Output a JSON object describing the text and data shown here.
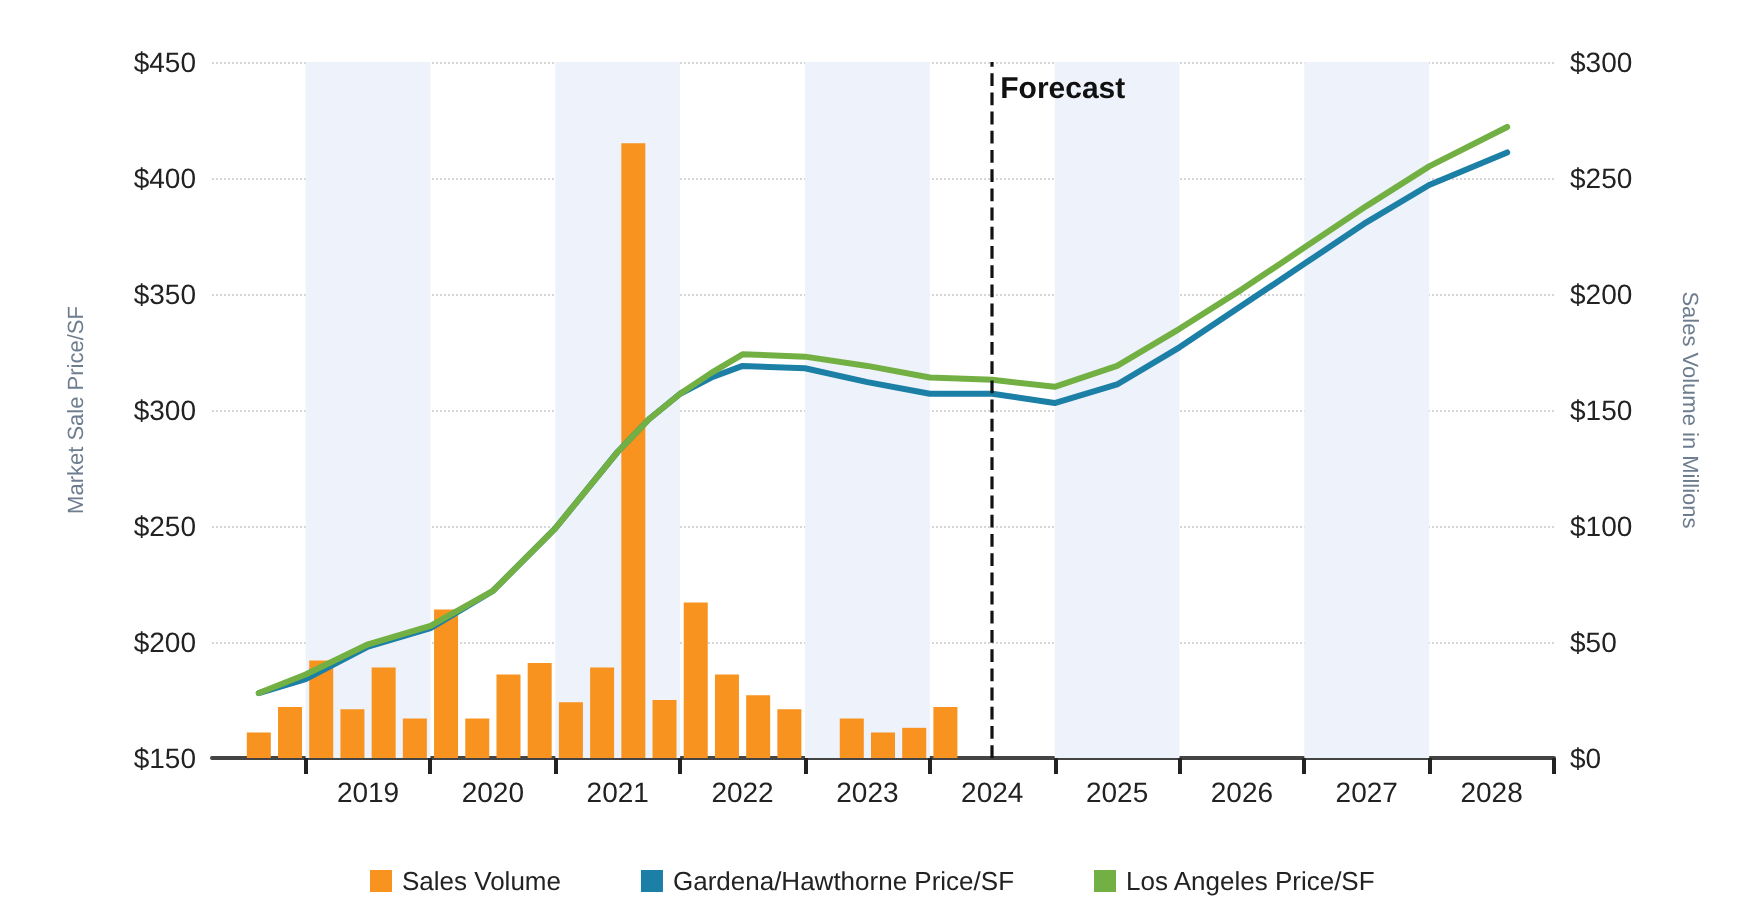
{
  "chart_data": {
    "type": "line",
    "ylabel": "Market Sale Price/SF",
    "y2label": "Sales Volume in Millions",
    "xlim": [
      2018.25,
      2029
    ],
    "xticks": [
      {
        "value": 2019,
        "label": null
      },
      {
        "value": 2019.5,
        "label": "2019"
      },
      {
        "value": 2020,
        "label": null
      },
      {
        "value": 2020.5,
        "label": "2020"
      },
      {
        "value": 2021,
        "label": null
      },
      {
        "value": 2021.5,
        "label": "2021"
      },
      {
        "value": 2022,
        "label": null
      },
      {
        "value": 2022.5,
        "label": "2022"
      },
      {
        "value": 2023,
        "label": null
      },
      {
        "value": 2023.5,
        "label": "2023"
      },
      {
        "value": 2024,
        "label": null
      },
      {
        "value": 2024.5,
        "label": "2024"
      },
      {
        "value": 2025,
        "label": null
      },
      {
        "value": 2025.5,
        "label": "2025"
      },
      {
        "value": 2026,
        "label": null
      },
      {
        "value": 2026.5,
        "label": "2026"
      },
      {
        "value": 2027,
        "label": null
      },
      {
        "value": 2027.5,
        "label": "2027"
      },
      {
        "value": 2028,
        "label": null
      },
      {
        "value": 2028.5,
        "label": "2028"
      },
      {
        "value": 2029,
        "label": null
      }
    ],
    "ylim": [
      150,
      450
    ],
    "yticks": [
      {
        "value": 150,
        "label": "$150"
      },
      {
        "value": 200,
        "label": "$200"
      },
      {
        "value": 250,
        "label": "$250"
      },
      {
        "value": 300,
        "label": "$300"
      },
      {
        "value": 350,
        "label": "$350"
      },
      {
        "value": 400,
        "label": "$400"
      },
      {
        "value": 450,
        "label": "$450"
      }
    ],
    "y2lim": [
      0,
      300
    ],
    "y2ticks": [
      {
        "value": 0,
        "label": "$0"
      },
      {
        "value": 50,
        "label": "$50"
      },
      {
        "value": 100,
        "label": "$100"
      },
      {
        "value": 150,
        "label": "$150"
      },
      {
        "value": 200,
        "label": "$200"
      },
      {
        "value": 250,
        "label": "$250"
      },
      {
        "value": 300,
        "label": "$300"
      }
    ],
    "series": [
      {
        "name": "Sales Volume",
        "type": "bar",
        "axis": "y2",
        "color": "#f7931e",
        "x": [
          2018.625,
          2018.875,
          2019.125,
          2019.375,
          2019.625,
          2019.875,
          2020.125,
          2020.375,
          2020.625,
          2020.875,
          2021.125,
          2021.375,
          2021.625,
          2021.875,
          2022.125,
          2022.375,
          2022.625,
          2022.875,
          2023.375,
          2023.625,
          2023.875,
          2024.125
        ],
        "values": [
          11,
          22,
          42,
          21,
          39,
          17,
          64,
          17,
          36,
          41,
          24,
          39,
          265,
          25,
          67,
          36,
          27,
          21,
          17,
          11,
          13,
          22
        ]
      },
      {
        "name": "Gardena/Hawthorne Price/SF",
        "color": "#1b7fa6",
        "x": [
          2018.625,
          2019,
          2019.5,
          2020,
          2020.5,
          2021,
          2021.5,
          2021.75,
          2022,
          2022.25,
          2022.5,
          2023,
          2023.5,
          2024,
          2024.5,
          2025,
          2025.5,
          2026,
          2026.5,
          2027,
          2027.5,
          2028,
          2028.625
        ],
        "values": [
          178,
          184,
          198,
          206,
          222,
          249,
          282,
          296,
          307,
          314,
          319,
          318,
          312,
          307,
          307,
          303,
          311,
          327,
          345,
          363,
          381,
          397,
          411
        ]
      },
      {
        "name": "Los Angeles Price/SF",
        "color": "#72b043",
        "x": [
          2018.625,
          2019,
          2019.5,
          2020,
          2020.5,
          2021,
          2021.5,
          2021.75,
          2022,
          2022.25,
          2022.5,
          2023,
          2023.5,
          2024,
          2024.5,
          2025,
          2025.5,
          2026,
          2026.5,
          2027,
          2027.5,
          2028,
          2028.625
        ],
        "values": [
          178,
          186,
          199,
          207,
          222,
          249,
          282,
          296,
          307,
          316,
          324,
          323,
          319,
          314,
          313,
          310,
          319,
          335,
          352,
          370,
          388,
          405,
          422
        ]
      }
    ],
    "ref_lines": [
      {
        "axis": "x",
        "value": 2024.5,
        "label": "Forecast",
        "color": "#111111",
        "line_style": "dashed"
      }
    ],
    "bands": [
      {
        "axis": "x",
        "from": 2019,
        "to": 2020,
        "color": "#eef2fa"
      },
      {
        "axis": "x",
        "from": 2021,
        "to": 2022,
        "color": "#eef2fa"
      },
      {
        "axis": "x",
        "from": 2023,
        "to": 2024,
        "color": "#eef2fa"
      },
      {
        "axis": "x",
        "from": 2025,
        "to": 2026,
        "color": "#eef2fa"
      },
      {
        "axis": "x",
        "from": 2027,
        "to": 2028,
        "color": "#eef2fa"
      }
    ],
    "grid": "y",
    "legend": "bottom",
    "marker": "none",
    "line_style": "solid"
  }
}
